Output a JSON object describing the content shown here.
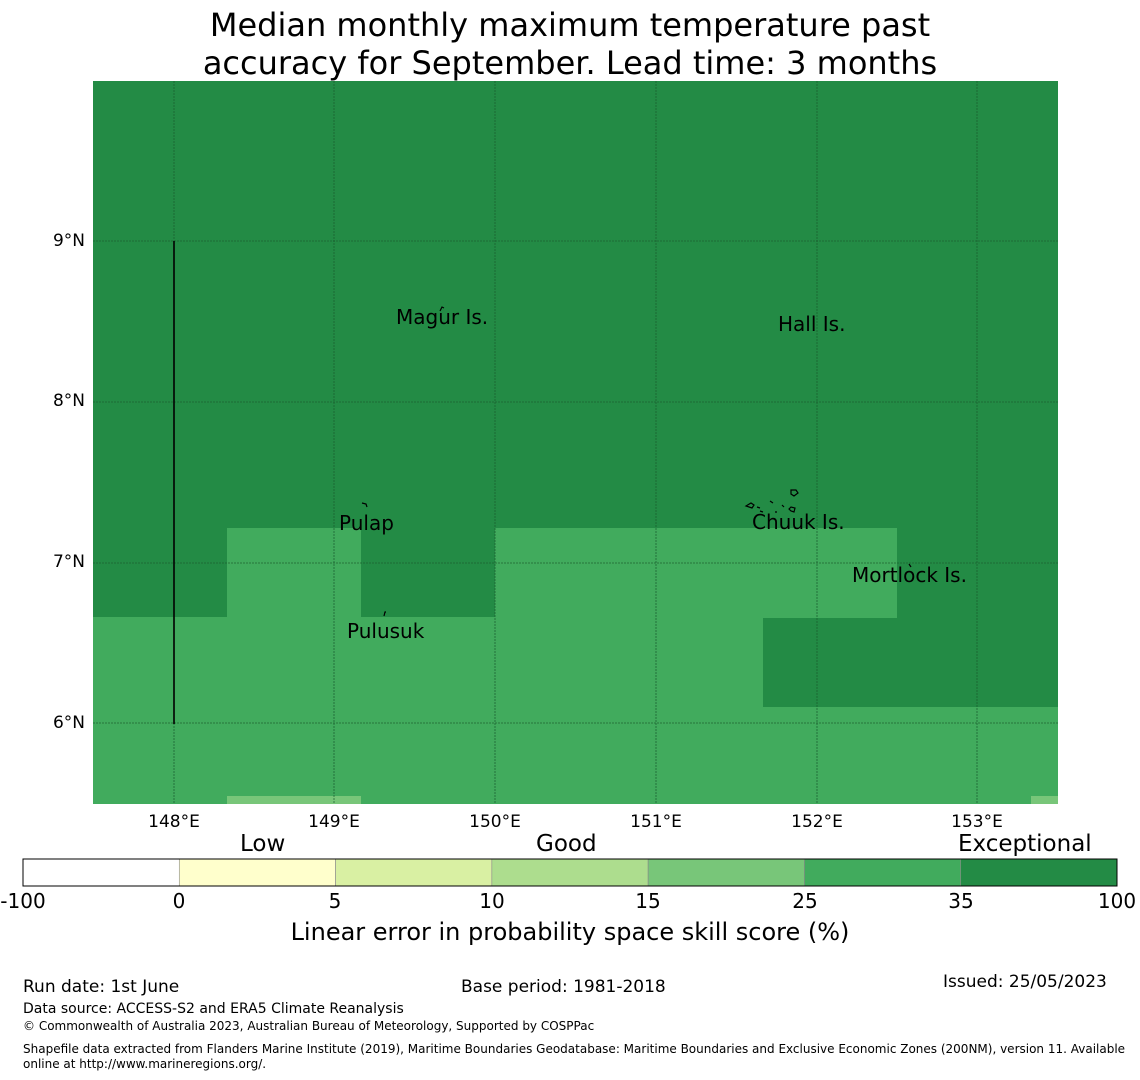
{
  "title": {
    "line1": "Median monthly maximum temperature past",
    "line2": "accuracy for September. Lead time: 3 months"
  },
  "map": {
    "lat_labels": [
      "9°N",
      "8°N",
      "7°N",
      "6°N"
    ],
    "lon_labels": [
      "148°E",
      "149°E",
      "150°E",
      "151°E",
      "152°E",
      "153°E"
    ],
    "places": [
      "Magur Is.",
      "Hall Is.",
      "Pulap",
      "Chuuk Is.",
      "Mortlock Is.",
      "Pulusuk"
    ],
    "colors": {
      "exceptional": "#238b45",
      "good_high": "#41ab5d",
      "good_mid": "#78c679",
      "gridline": "#1a5c2e"
    }
  },
  "colorbar": {
    "categories": [
      "Low",
      "Good",
      "Exceptional"
    ],
    "ticks": [
      "-100",
      "0",
      "5",
      "10",
      "15",
      "25",
      "35",
      "100"
    ],
    "colors": [
      "#ffffff",
      "#ffffcc",
      "#d9f0a3",
      "#addd8e",
      "#78c679",
      "#41ab5d",
      "#238b45"
    ],
    "label": "Linear error in probability space skill score (%)"
  },
  "footer": {
    "run_date": "Run date: 1st June",
    "base_period": "Base period: 1981-2018",
    "issued": "Issued: 25/05/2023",
    "data_source": "Data source: ACCESS-S2 and ERA5 Climate Reanalysis",
    "copyright": "© Commonwealth of Australia 2023, Australian Bureau of Meteorology, Supported by COSPPac",
    "shapefile_line1": "Shapefile data extracted from Flanders Marine Institute (2019), Maritime Boundaries Geodatabase: Maritime Boundaries and Exclusive Economic Zones (200NM), version 11. Available",
    "shapefile_line2": "online at http://www.marineregions.org/."
  }
}
